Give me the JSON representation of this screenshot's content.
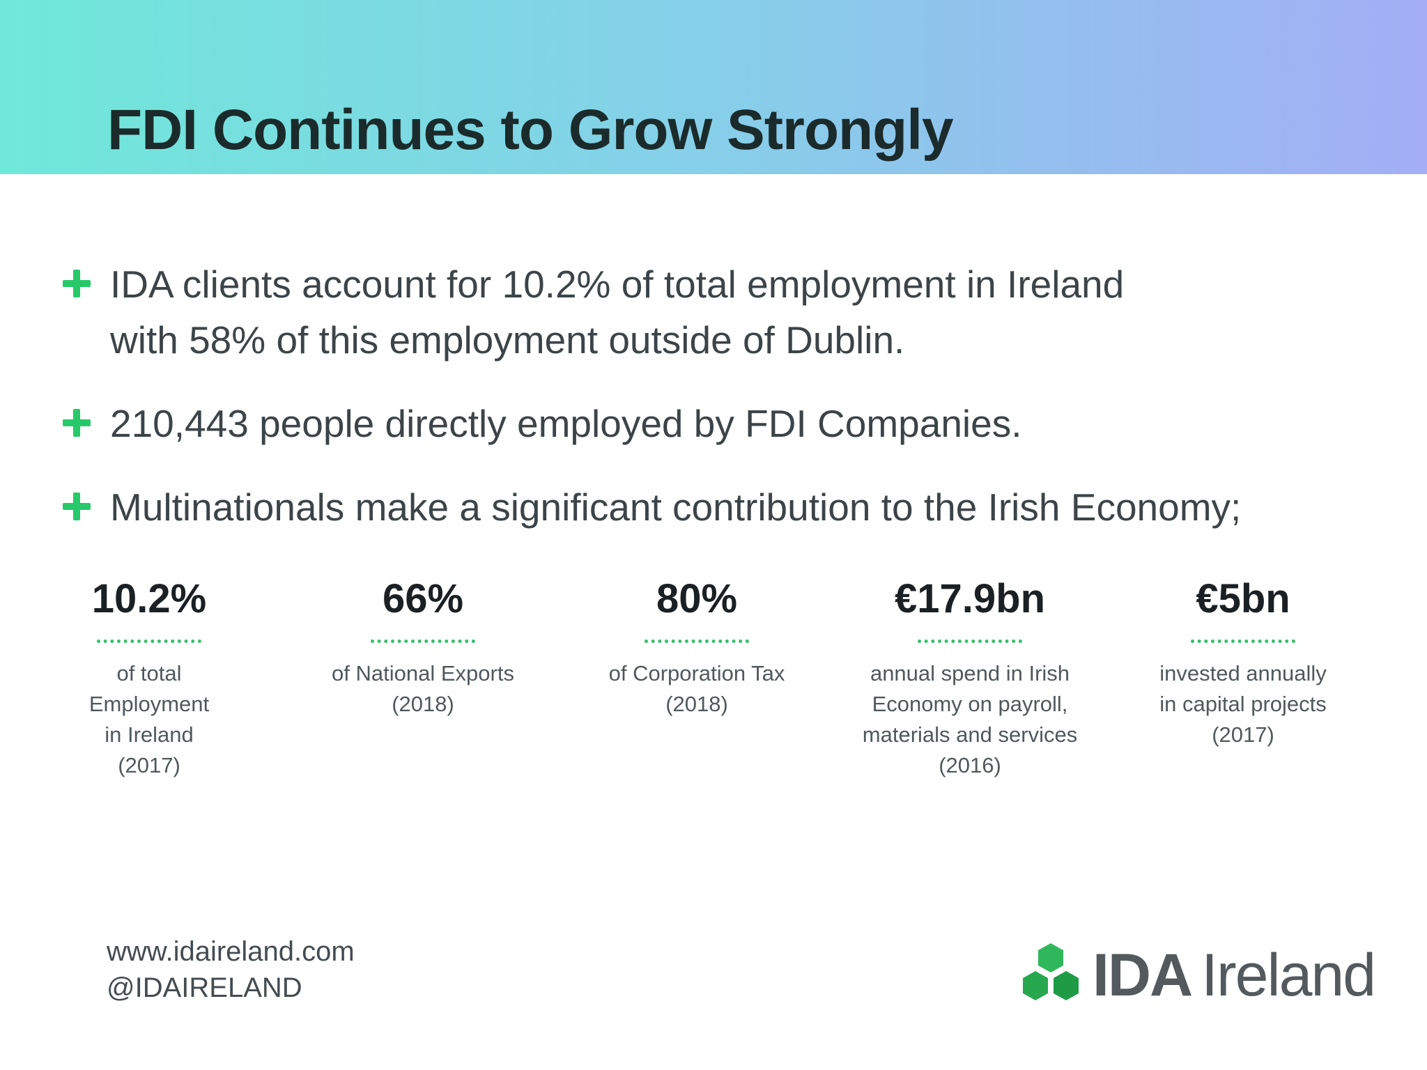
{
  "header": {
    "title": "FDI Continues to Grow Strongly"
  },
  "bullets": [
    {
      "line1": "IDA clients account for 10.2% of total employment in Ireland",
      "line2": "with 58% of this employment outside of Dublin."
    },
    {
      "line1": "210,443 people directly employed by FDI Companies."
    },
    {
      "line1": "Multinationals make a significant contribution to the Irish Economy;"
    }
  ],
  "stats": [
    {
      "value": "10.2%",
      "lines": [
        "of total",
        "Employment",
        "in Ireland",
        "(2017)"
      ]
    },
    {
      "value": "66%",
      "lines": [
        "of National Exports",
        "(2018)"
      ]
    },
    {
      "value": "80%",
      "lines": [
        "of Corporation Tax",
        "(2018)"
      ]
    },
    {
      "value": "€17.9bn",
      "lines": [
        "annual spend in Irish",
        "Economy on payroll,",
        "materials and services",
        "(2016)"
      ]
    },
    {
      "value": "€5bn",
      "lines": [
        "invested annually",
        "in capital projects",
        "(2017)"
      ]
    }
  ],
  "footer": {
    "website": "www.idaireland.com",
    "handle": "@IDAIRELAND"
  },
  "logo": {
    "bold": "IDA",
    "light": "Ireland",
    "icon": "hexagon-cluster-logo-icon"
  },
  "colors": {
    "accent_green": "#27c86a",
    "header_gradient_start": "#6fe8d9",
    "header_gradient_end": "#a3aef5"
  }
}
